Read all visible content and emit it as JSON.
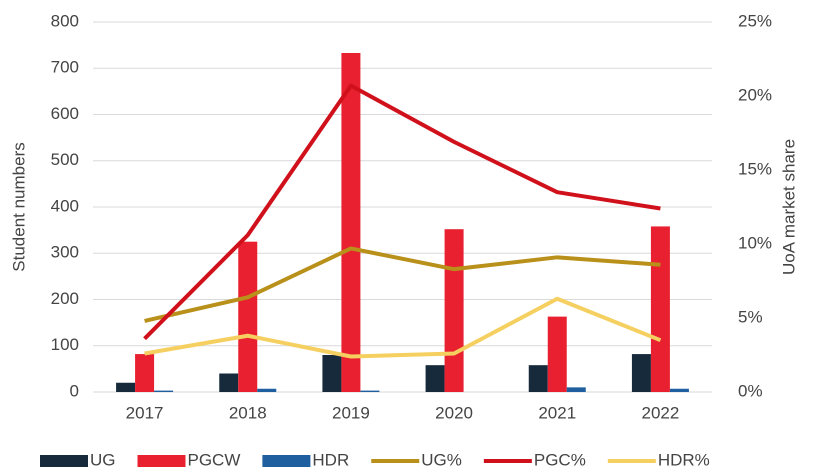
{
  "chart_data": {
    "type": "bar",
    "categories": [
      "2017",
      "2018",
      "2019",
      "2020",
      "2021",
      "2022"
    ],
    "y_label": "Student numbers",
    "y2_label": "UoA market share",
    "ylim": [
      0,
      800
    ],
    "yticks": [
      0,
      100,
      200,
      300,
      400,
      500,
      600,
      700,
      800
    ],
    "y2lim": [
      0,
      25
    ],
    "y2ticks": [
      {
        "value": 0,
        "label": "0%"
      },
      {
        "value": 5,
        "label": "5%"
      },
      {
        "value": 10,
        "label": "10%"
      },
      {
        "value": 15,
        "label": "15%"
      },
      {
        "value": 20,
        "label": "20%"
      },
      {
        "value": 25,
        "label": "25%"
      }
    ],
    "grid": true,
    "legend": "bottom",
    "series": [
      {
        "name": "UG",
        "type": "bar",
        "color": "#172a3c",
        "values": [
          20,
          40,
          80,
          58,
          58,
          82
        ]
      },
      {
        "name": "PGCW",
        "type": "bar",
        "color": "#e8202f",
        "values": [
          82,
          325,
          733,
          352,
          163,
          358
        ]
      },
      {
        "name": "HDR",
        "type": "bar",
        "color": "#1f5fa0",
        "values": [
          3,
          7,
          3,
          0,
          10,
          7
        ]
      },
      {
        "name": "UG%",
        "type": "line",
        "axis": "y2",
        "color": "#b8901a",
        "values": [
          4.8,
          6.4,
          9.7,
          8.3,
          9.1,
          8.6
        ]
      },
      {
        "name": "PGC%",
        "type": "line",
        "axis": "y2",
        "color": "#d0101a",
        "values": [
          3.6,
          10.6,
          20.7,
          16.9,
          13.5,
          12.4
        ]
      },
      {
        "name": "HDR%",
        "type": "line",
        "axis": "y2",
        "color": "#f5d060",
        "values": [
          2.6,
          3.8,
          2.4,
          2.6,
          6.3,
          3.5
        ]
      }
    ]
  }
}
